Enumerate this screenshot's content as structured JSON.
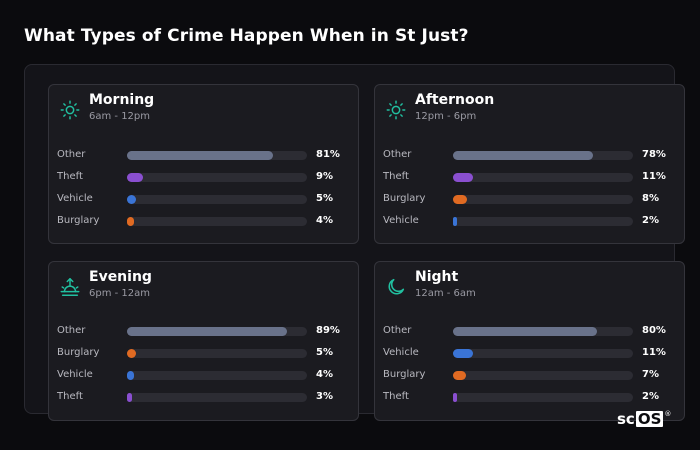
{
  "page": {
    "title": "What Types of Crime Happen When in St Just?"
  },
  "colors": {
    "Other": "#69728a",
    "Theft": "#8a4fd0",
    "Vehicle": "#3a74d6",
    "Burglary": "#e06a22",
    "icon": "#21c0a0"
  },
  "cards": [
    {
      "title": "Morning",
      "subtitle": "6am - 12pm",
      "icon": "sun-icon",
      "rows": [
        {
          "label": "Other",
          "value": "81%",
          "pct": 81
        },
        {
          "label": "Theft",
          "value": "9%",
          "pct": 9
        },
        {
          "label": "Vehicle",
          "value": "5%",
          "pct": 5
        },
        {
          "label": "Burglary",
          "value": "4%",
          "pct": 4
        }
      ]
    },
    {
      "title": "Afternoon",
      "subtitle": "12pm - 6pm",
      "icon": "sun-icon",
      "rows": [
        {
          "label": "Other",
          "value": "78%",
          "pct": 78
        },
        {
          "label": "Theft",
          "value": "11%",
          "pct": 11
        },
        {
          "label": "Burglary",
          "value": "8%",
          "pct": 8
        },
        {
          "label": "Vehicle",
          "value": "2%",
          "pct": 2
        }
      ]
    },
    {
      "title": "Evening",
      "subtitle": "6pm - 12am",
      "icon": "sunset-icon",
      "rows": [
        {
          "label": "Other",
          "value": "89%",
          "pct": 89
        },
        {
          "label": "Burglary",
          "value": "5%",
          "pct": 5
        },
        {
          "label": "Vehicle",
          "value": "4%",
          "pct": 4
        },
        {
          "label": "Theft",
          "value": "3%",
          "pct": 3
        }
      ]
    },
    {
      "title": "Night",
      "subtitle": "12am - 6am",
      "icon": "moon-icon",
      "rows": [
        {
          "label": "Other",
          "value": "80%",
          "pct": 80
        },
        {
          "label": "Vehicle",
          "value": "11%",
          "pct": 11
        },
        {
          "label": "Burglary",
          "value": "7%",
          "pct": 7
        },
        {
          "label": "Theft",
          "value": "2%",
          "pct": 2
        }
      ]
    }
  ],
  "logo": {
    "sc": "sc",
    "os": "OS",
    "reg": "®"
  }
}
